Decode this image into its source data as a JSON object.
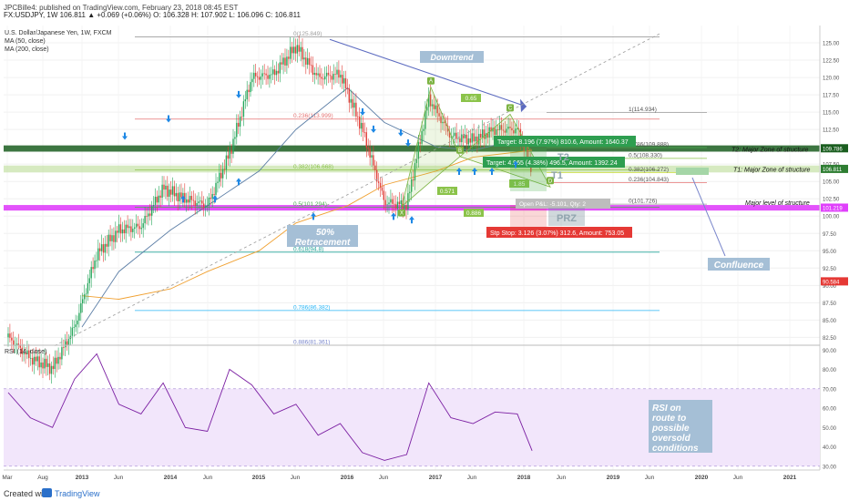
{
  "header": {
    "username": "JPCBilla",
    "published": "JPCBille4: published on TradingView.com, February 23, 2018 08:45 EST",
    "quote_line": "FX:USDJPY, 1W  106.811  ▲ +0.069 (+0.06%)  O: 106.328  H: 107.902  L: 106.096  C: 106.811"
  },
  "legend": {
    "instrument": "U.S. Dollar/Japanese Yen, 1W, FXCM",
    "ma50": "MA (50, close)",
    "ma200": "MA (200, close)",
    "rsi": "RSI (14, close)"
  },
  "annotations": {
    "downtrend": "Downtrend",
    "retracement": [
      "50%",
      "Retracement"
    ],
    "confluence": "Confluence",
    "rsi_note": [
      "RSI on",
      "route to",
      "possible",
      "oversold",
      "conditions"
    ],
    "t2_zone": "T2: Major Zone  of structure",
    "t1_zone": "T1: Major Zone of structure",
    "major_level": "Major level of structure",
    "target1": "Target: 8.196 (7.97%) 810.6, Amount: 1640.37",
    "target2": "Target: 4.965 (4.38%) 496.5, Amount: 1392.24",
    "stop": "Stp Stop: 3.126 (3.07%) 312.6, Amount: 753.05",
    "open_pl": "Open P&L: -5.101, Qty: 2",
    "prz": "PRZ",
    "t1": "T1",
    "t2": "T2",
    "fib_labels": [
      "0(125.849)",
      "0.236(113.999)",
      "0.382(106.668)",
      "0.5(101.294)",
      "0.618(94.8)",
      "0.786(86.382)",
      "0.886(81.361)"
    ],
    "fib_right": [
      "1(114.934)",
      "0.5(108.330)",
      "0.382(106.272)",
      "0.236(104.843)",
      "0(101.726)",
      "0.786(109.888)"
    ],
    "harmonic_labels": [
      "A",
      "C",
      "X",
      "B",
      "D"
    ],
    "harmonic_ratios": [
      "0.65",
      "0.571",
      "1.85",
      "0.886"
    ]
  },
  "footer": {
    "created": "Created with",
    "brand": "TradingView"
  },
  "chart_data": [
    {
      "type": "line",
      "title": "U.S. Dollar/Japanese Yen, 1W, FXCM",
      "y_ticks": [
        82.5,
        85.0,
        87.5,
        90.0,
        92.5,
        95.0,
        97.5,
        100.0,
        102.5,
        105.0,
        107.5,
        110.0,
        112.5,
        115.0,
        117.5,
        120.0,
        122.5,
        125.0
      ],
      "ylim": [
        81.5,
        127.5
      ],
      "x_ticks": [
        "Mar",
        "Aug",
        "2013",
        "Jun",
        "2014",
        "Jun",
        "2015",
        "Jun",
        "2016",
        "Jun",
        "2017",
        "Jun",
        "2018",
        "Jun",
        "2019",
        "Jun",
        "2020",
        "Jun",
        "2021"
      ],
      "price_axis_labels": [
        "109.786",
        "106.811",
        "101.219",
        "90.584"
      ],
      "series": [
        {
          "name": "FX:USDJPY",
          "x": [
            "2012-03",
            "2012-06",
            "2012-09",
            "2012-12",
            "2013-03",
            "2013-06",
            "2013-09",
            "2013-12",
            "2014-03",
            "2014-06",
            "2014-09",
            "2014-12",
            "2015-03",
            "2015-06",
            "2015-09",
            "2015-12",
            "2016-03",
            "2016-06",
            "2016-09",
            "2016-12",
            "2017-03",
            "2017-06",
            "2017-09",
            "2017-12",
            "2018-02"
          ],
          "values": [
            82.5,
            79.5,
            78.0,
            84.0,
            94.5,
            98.0,
            98.5,
            104.0,
            102.5,
            101.5,
            109.0,
            120.0,
            120.5,
            124.5,
            120.0,
            120.5,
            112.5,
            102.0,
            101.5,
            117.0,
            111.5,
            111.0,
            112.5,
            112.5,
            106.8
          ]
        },
        {
          "name": "MA (50, close)",
          "x": [
            "2013-01",
            "2013-06",
            "2014-01",
            "2014-06",
            "2015-01",
            "2015-06",
            "2016-01",
            "2016-06",
            "2017-01",
            "2017-06",
            "2018-02"
          ],
          "values": [
            84.0,
            92.0,
            98.0,
            101.5,
            106.5,
            112.5,
            118.5,
            113.5,
            110.0,
            109.5,
            111.5
          ]
        },
        {
          "name": "MA (200, close)",
          "x": [
            "2013-01",
            "2013-06",
            "2014-01",
            "2014-06",
            "2015-01",
            "2015-06",
            "2016-01",
            "2016-06",
            "2017-01",
            "2017-06",
            "2018-02"
          ],
          "values": [
            88.5,
            88.0,
            89.5,
            92.0,
            95.0,
            99.0,
            101.5,
            104.5,
            106.5,
            108.5,
            109.5
          ]
        }
      ],
      "horizontal_levels": [
        125.849,
        113.999,
        109.786,
        106.811,
        106.668,
        101.219,
        94.8,
        86.382,
        81.361
      ]
    },
    {
      "type": "line",
      "title": "RSI (14, close)",
      "y_ticks": [
        30.0,
        40.0,
        50.0,
        60.0,
        70.0,
        80.0,
        90.0
      ],
      "ylim": [
        28,
        92
      ],
      "overbought": 70,
      "oversold": 30,
      "series": [
        {
          "name": "RSI",
          "x": [
            "2012-03",
            "2012-06",
            "2012-09",
            "2012-12",
            "2013-03",
            "2013-06",
            "2013-09",
            "2013-12",
            "2014-03",
            "2014-06",
            "2014-09",
            "2014-12",
            "2015-03",
            "2015-06",
            "2015-09",
            "2015-12",
            "2016-03",
            "2016-06",
            "2016-09",
            "2016-12",
            "2017-03",
            "2017-06",
            "2017-09",
            "2017-12",
            "2018-02"
          ],
          "values": [
            68,
            55,
            50,
            75,
            88,
            62,
            57,
            73,
            50,
            48,
            80,
            72,
            57,
            62,
            46,
            52,
            37,
            33,
            36,
            73,
            55,
            52,
            58,
            57,
            38
          ]
        }
      ]
    }
  ]
}
